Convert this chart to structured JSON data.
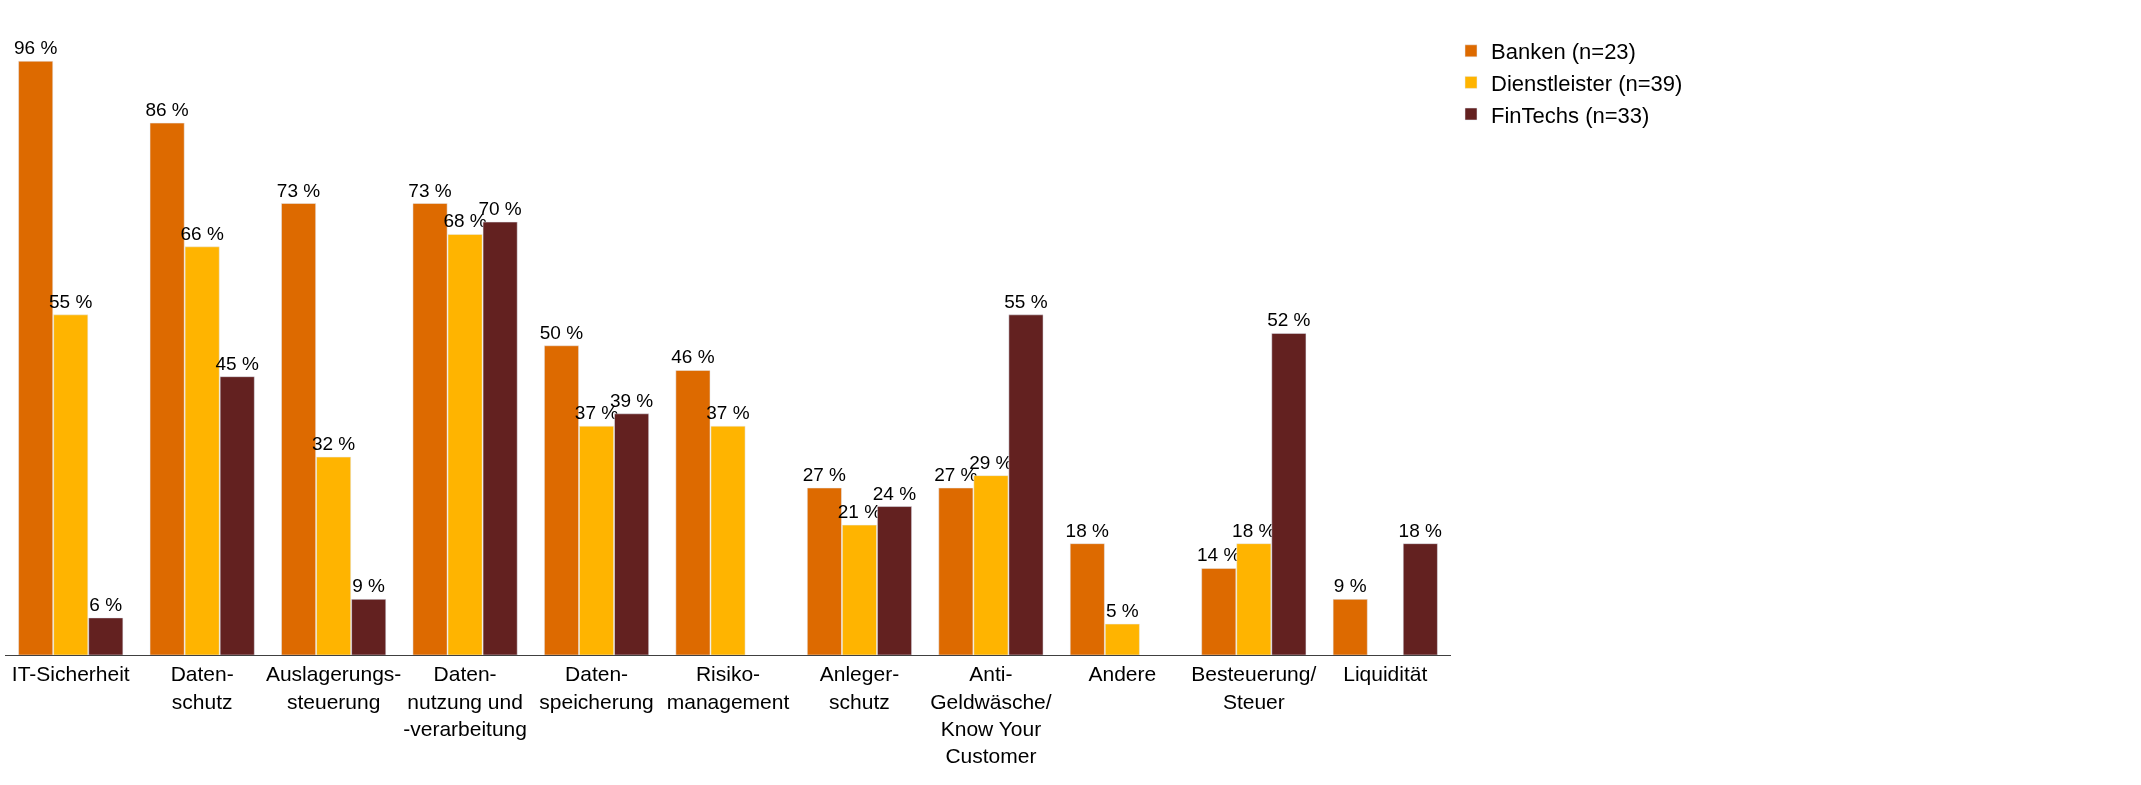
{
  "chart_data": {
    "type": "bar",
    "categories": [
      "IT-Sicherheit",
      "Daten-\nschutz",
      "Auslagerungs-\nsteuerung",
      "Daten-\nnutzung und\n-verarbeitung",
      "Daten-\nspeicherung",
      "Risiko-\nmanagement",
      "Anleger-\nschutz",
      "Anti-\nGeldwäsche/\nKnow Your\nCustomer",
      "Andere",
      "Besteuerung/\nSteuer",
      "Liquidität"
    ],
    "series": [
      {
        "name": "Banken (n=23)",
        "color": "#dd6a00",
        "values": [
          96,
          86,
          73,
          73,
          50,
          46,
          27,
          27,
          18,
          14,
          9
        ],
        "value_labels": [
          "96 %",
          "86 %",
          "73 %",
          "73 %",
          "50 %",
          "46 %",
          "27 %",
          "27 %",
          "18 %",
          "14 %",
          "9 %"
        ]
      },
      {
        "name": "Dienstleister (n=39)",
        "color": "#ffb400",
        "values": [
          55,
          66,
          32,
          68,
          37,
          37,
          21,
          29,
          5,
          18,
          null
        ],
        "value_labels": [
          "55 %",
          "66 %",
          "32 %",
          "68 %",
          "37 %",
          "37 %",
          "21 %",
          "29 %",
          "5 %",
          "18 %",
          null
        ]
      },
      {
        "name": "FinTechs (n=33)",
        "color": "#632120",
        "values": [
          6,
          45,
          9,
          70,
          39,
          null,
          24,
          55,
          null,
          52,
          18
        ],
        "value_labels": [
          "6 %",
          "45 %",
          "9 %",
          "70 %",
          "39 %",
          null,
          "24 %",
          "55 %",
          null,
          "52 %",
          "18 %"
        ]
      }
    ],
    "tick_labels": "x",
    "legend": "top right"
  }
}
